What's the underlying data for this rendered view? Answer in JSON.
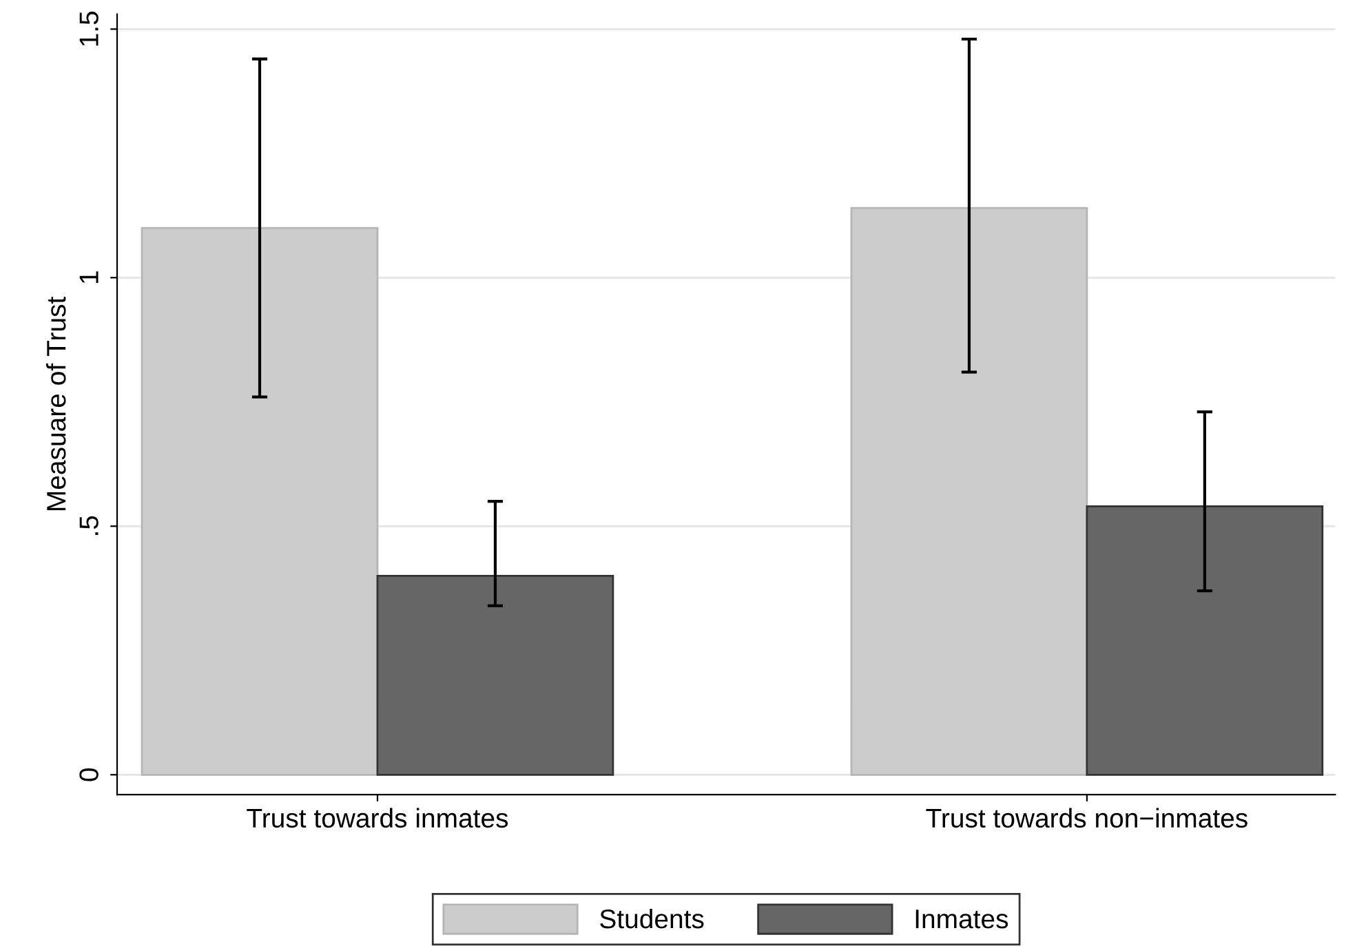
{
  "chart_data": {
    "type": "bar",
    "ylabel": "Measuare of Trust",
    "categories": [
      "Trust towards inmates",
      "Trust towards non−inmates"
    ],
    "series": [
      {
        "name": "Students",
        "color": "#cccccc",
        "values": [
          1.1,
          1.14
        ],
        "errors": [
          [
            0.76,
            1.44
          ],
          [
            0.81,
            1.48
          ]
        ]
      },
      {
        "name": "Inmates",
        "color": "#666666",
        "values": [
          0.4,
          0.54
        ],
        "errors": [
          [
            0.34,
            0.55
          ],
          [
            0.37,
            0.73
          ]
        ]
      }
    ],
    "ylim": [
      -0.04,
      1.53
    ],
    "yticks": [
      {
        "value": 0,
        "label": "0"
      },
      {
        "value": 0.5,
        "label": ".5"
      },
      {
        "value": 1,
        "label": "1"
      },
      {
        "value": 1.5,
        "label": "1.5"
      }
    ],
    "grid": "y",
    "legend": "bottom"
  }
}
